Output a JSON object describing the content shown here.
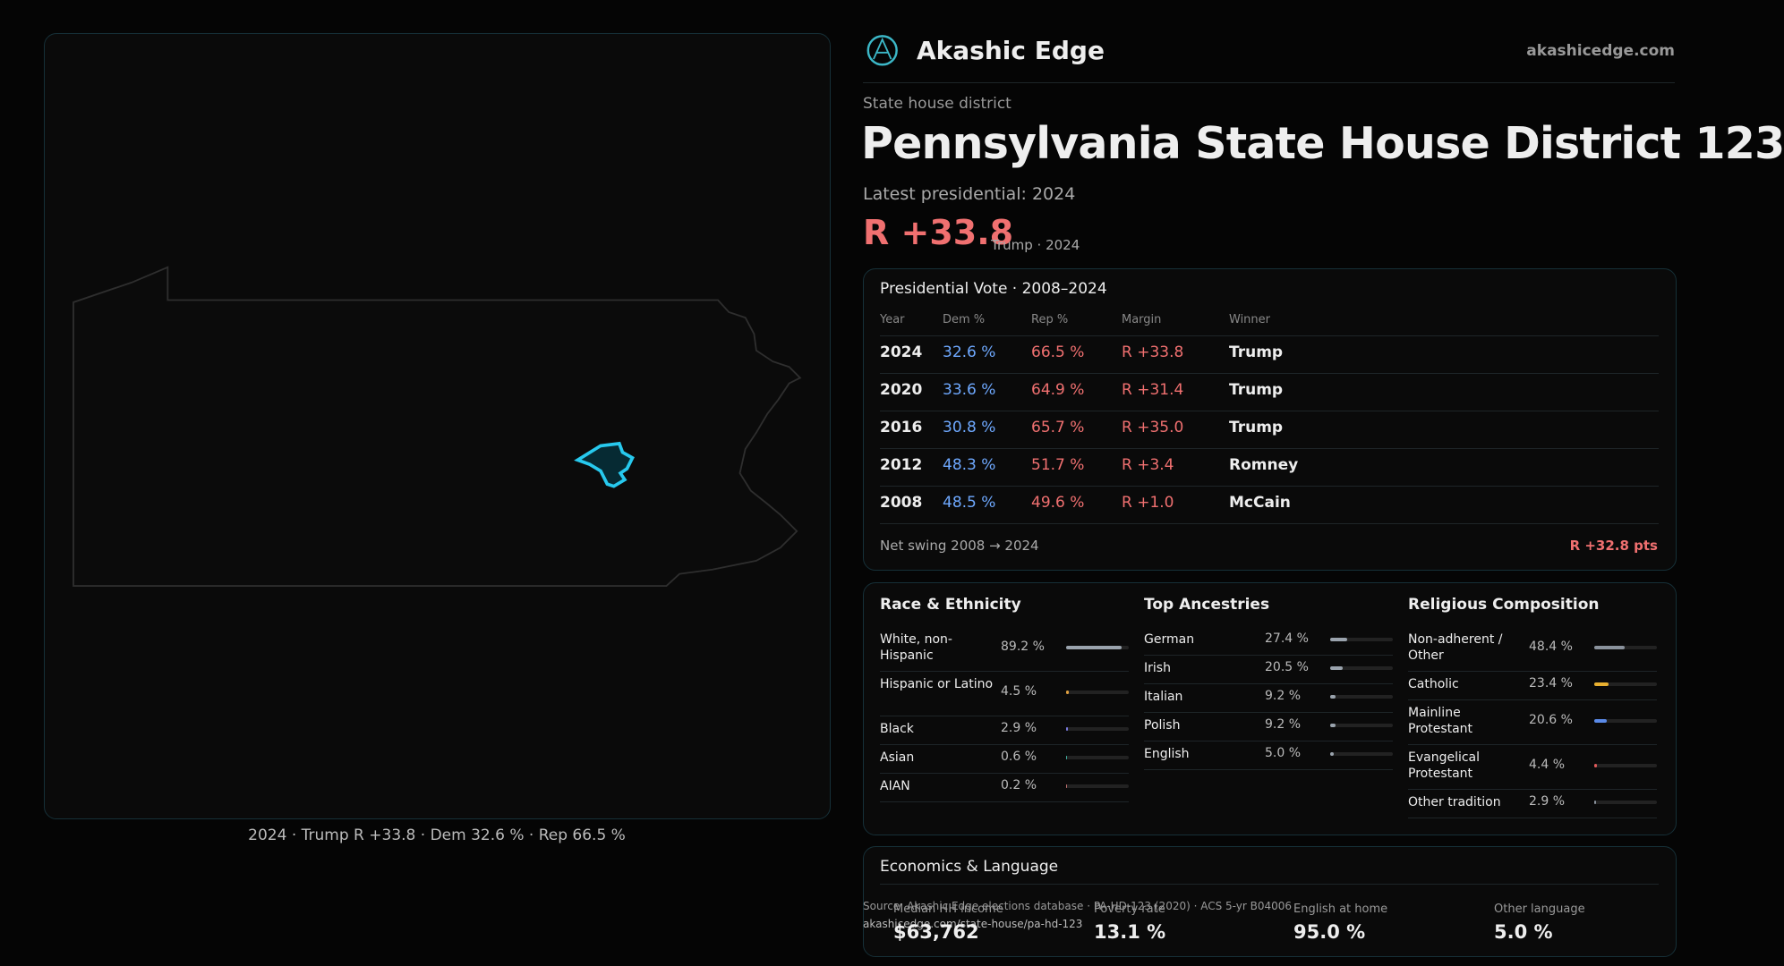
{
  "brand": {
    "name": "Akashic Edge",
    "url": "akashicedge.com"
  },
  "header": {
    "kicker": "State house district",
    "title": "Pennsylvania State House District 123",
    "latest": "Latest presidential: 2024",
    "margin": "R +33.8",
    "margin_note": "Trump · 2024"
  },
  "map": {
    "caption": "2024 · Trump R +33.8 · Dem 32.6 % · Rep 66.5 %"
  },
  "vote": {
    "title": "Presidential Vote · 2008–2024",
    "columns": [
      "Year",
      "Dem %",
      "Rep %",
      "Margin",
      "Winner"
    ],
    "rows": [
      [
        "2024",
        "32.6 %",
        "66.5 %",
        "R +33.8",
        "Trump"
      ],
      [
        "2020",
        "33.6 %",
        "64.9 %",
        "R +31.4",
        "Trump"
      ],
      [
        "2016",
        "30.8 %",
        "65.7 %",
        "R +35.0",
        "Trump"
      ],
      [
        "2012",
        "48.3 %",
        "51.7 %",
        "R +3.4",
        "Romney"
      ],
      [
        "2008",
        "48.5 %",
        "49.6 %",
        "R +1.0",
        "McCain"
      ]
    ],
    "swing_label": "Net swing 2008 → 2024",
    "swing_value": "R +32.8 pts"
  },
  "race": {
    "title": "Race & Ethnicity",
    "rows": [
      {
        "name": "White, non-Hispanic",
        "value": 89.2,
        "label": "89.2 %",
        "color": "#9aa3ad"
      },
      {
        "name": "Hispanic or Latino",
        "value": 4.5,
        "label": "4.5 %",
        "color": "#e0a040"
      },
      {
        "name": "Black",
        "value": 2.9,
        "label": "2.9 %",
        "color": "#7a7ae0"
      },
      {
        "name": "Asian",
        "value": 0.6,
        "label": "0.6 %",
        "color": "#40b0a0"
      },
      {
        "name": "AIAN",
        "value": 0.2,
        "label": "0.2 %",
        "color": "#c07070"
      }
    ]
  },
  "ancestry": {
    "title": "Top Ancestries",
    "rows": [
      {
        "name": "German",
        "value": 27.4,
        "label": "27.4 %",
        "color": "#9aa3ad"
      },
      {
        "name": "Irish",
        "value": 20.5,
        "label": "20.5 %",
        "color": "#9aa3ad"
      },
      {
        "name": "Italian",
        "value": 9.2,
        "label": "9.2 %",
        "color": "#9aa3ad"
      },
      {
        "name": "Polish",
        "value": 9.2,
        "label": "9.2 %",
        "color": "#9aa3ad"
      },
      {
        "name": "English",
        "value": 5.0,
        "label": "5.0 %",
        "color": "#9aa3ad"
      }
    ]
  },
  "religion": {
    "title": "Religious Composition",
    "rows": [
      {
        "name": "Non-adherent / Other",
        "value": 48.4,
        "label": "48.4 %",
        "color": "#8a929c"
      },
      {
        "name": "Catholic",
        "value": 23.4,
        "label": "23.4 %",
        "color": "#e8b030"
      },
      {
        "name": "Mainline Protestant",
        "value": 20.6,
        "label": "20.6 %",
        "color": "#5a8ae8"
      },
      {
        "name": "Evangelical Protestant",
        "value": 4.4,
        "label": "4.4 %",
        "color": "#e05a5a"
      },
      {
        "name": "Other tradition",
        "value": 2.9,
        "label": "2.9 %",
        "color": "#8a929c"
      }
    ]
  },
  "economics": {
    "title": "Economics & Language",
    "items": [
      {
        "label": "Median HH income",
        "value": "$63,762"
      },
      {
        "label": "Poverty rate",
        "value": "13.1 %"
      },
      {
        "label": "English at home",
        "value": "95.0 %"
      },
      {
        "label": "Other language",
        "value": "5.0 %"
      }
    ]
  },
  "footer": {
    "source": "Source: Akashic Edge elections database · PA-HD-123 (2020) · ACS 5-yr B04006",
    "url": "akashicedge.com/state-house/pa-hd-123"
  }
}
